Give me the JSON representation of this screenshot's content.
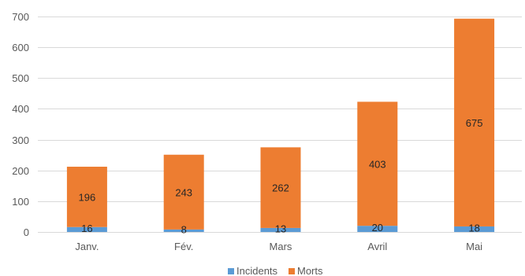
{
  "chart_data": {
    "type": "bar",
    "stacked": true,
    "categories": [
      "Janv.",
      "Fév.",
      "Mars",
      "Avril",
      "Mai"
    ],
    "series": [
      {
        "name": "Incidents",
        "color": "#5b9bd5",
        "values": [
          16,
          8,
          13,
          20,
          18
        ]
      },
      {
        "name": "Morts",
        "color": "#ed7d31",
        "values": [
          196,
          243,
          262,
          403,
          675
        ]
      }
    ],
    "ylim": [
      0,
      700
    ],
    "yticks": [
      0,
      100,
      200,
      300,
      400,
      500,
      600,
      700
    ],
    "grid": true,
    "legend_position": "bottom",
    "title": "",
    "xlabel": "",
    "ylabel": ""
  }
}
